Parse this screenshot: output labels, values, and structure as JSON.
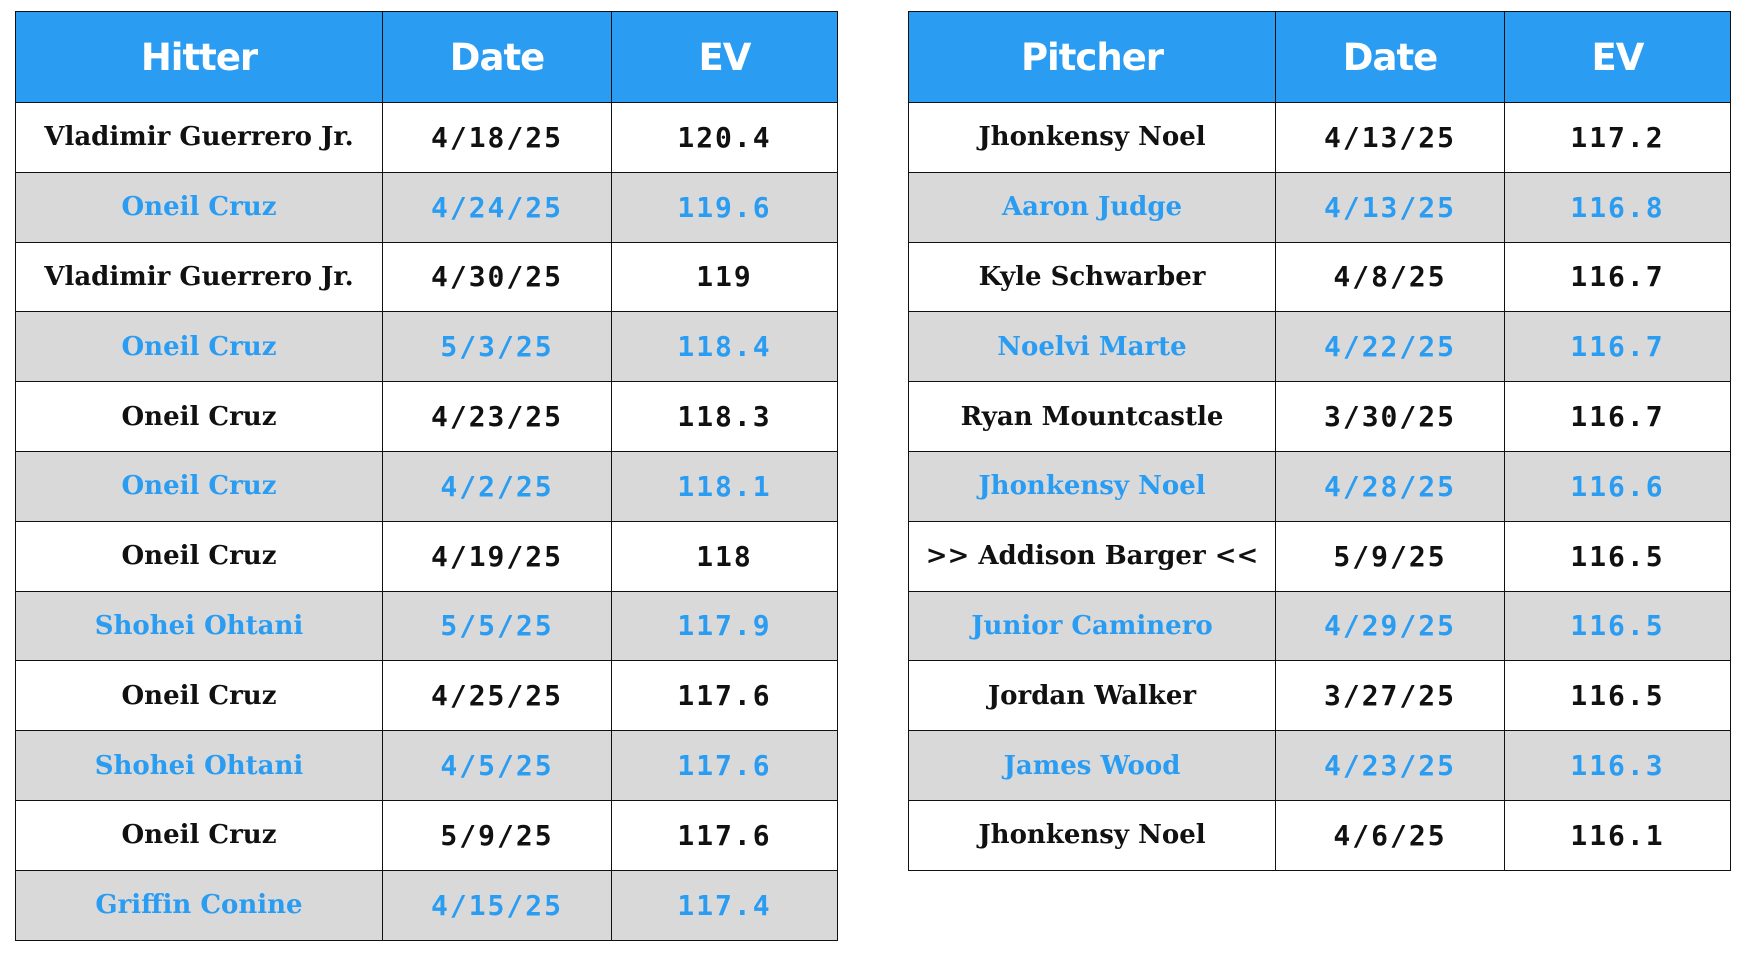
{
  "hitter_table": {
    "columns": [
      "Hitter",
      "Date",
      "EV"
    ],
    "rows": [
      {
        "name": "Vladimir Guerrero Jr.",
        "date": "4/18/25",
        "ev": "120.4"
      },
      {
        "name": "Oneil Cruz",
        "date": "4/24/25",
        "ev": "119.6"
      },
      {
        "name": "Vladimir Guerrero Jr.",
        "date": "4/30/25",
        "ev": "119"
      },
      {
        "name": "Oneil Cruz",
        "date": "5/3/25",
        "ev": "118.4"
      },
      {
        "name": "Oneil Cruz",
        "date": "4/23/25",
        "ev": "118.3"
      },
      {
        "name": "Oneil Cruz",
        "date": "4/2/25",
        "ev": "118.1"
      },
      {
        "name": "Oneil Cruz",
        "date": "4/19/25",
        "ev": "118"
      },
      {
        "name": "Shohei Ohtani",
        "date": "5/5/25",
        "ev": "117.9"
      },
      {
        "name": "Oneil Cruz",
        "date": "4/25/25",
        "ev": "117.6"
      },
      {
        "name": "Shohei Ohtani",
        "date": "4/5/25",
        "ev": "117.6"
      },
      {
        "name": "Oneil Cruz",
        "date": "5/9/25",
        "ev": "117.6"
      },
      {
        "name": "Griffin Conine",
        "date": "4/15/25",
        "ev": "117.4"
      }
    ]
  },
  "pitcher_table": {
    "columns": [
      "Pitcher",
      "Date",
      "EV"
    ],
    "rows": [
      {
        "name": "Jhonkensy Noel",
        "date": "4/13/25",
        "ev": "117.2"
      },
      {
        "name": "Aaron Judge",
        "date": "4/13/25",
        "ev": "116.8"
      },
      {
        "name": "Kyle Schwarber",
        "date": "4/8/25",
        "ev": "116.7"
      },
      {
        "name": "Noelvi Marte",
        "date": "4/22/25",
        "ev": "116.7"
      },
      {
        "name": "Ryan Mountcastle",
        "date": "3/30/25",
        "ev": "116.7"
      },
      {
        "name": "Jhonkensy Noel",
        "date": "4/28/25",
        "ev": "116.6"
      },
      {
        "name": ">> Addison Barger <<",
        "date": "5/9/25",
        "ev": "116.5"
      },
      {
        "name": "Junior Caminero",
        "date": "4/29/25",
        "ev": "116.5"
      },
      {
        "name": "Jordan Walker",
        "date": "3/27/25",
        "ev": "116.5"
      },
      {
        "name": "James Wood",
        "date": "4/23/25",
        "ev": "116.3"
      },
      {
        "name": "Jhonkensy Noel",
        "date": "4/6/25",
        "ev": "116.1"
      }
    ]
  },
  "colors": {
    "header_bg": "#2a9cf2",
    "header_text": "#ffffff",
    "alt_row_bg": "#d9d9d9",
    "alt_row_text": "#2a9cf2",
    "row_text": "#111111",
    "border": "#111111"
  }
}
